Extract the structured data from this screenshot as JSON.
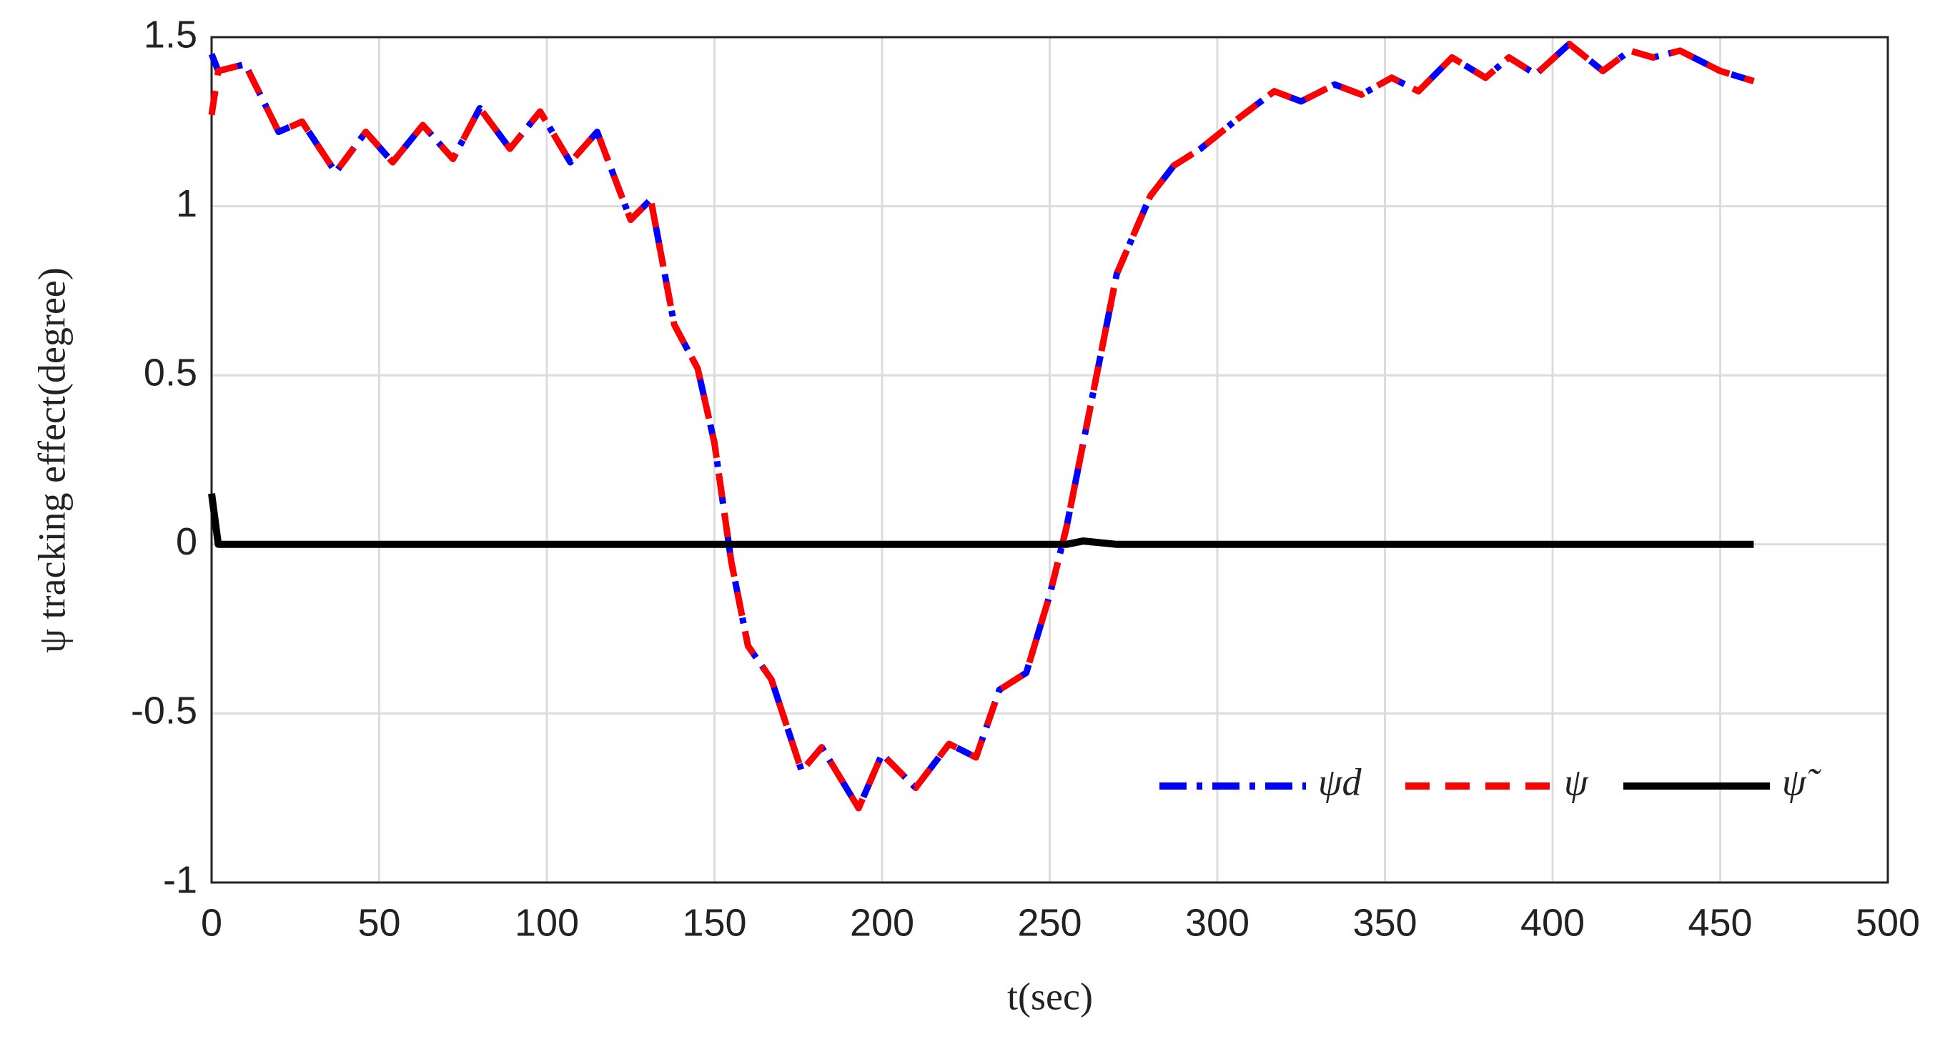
{
  "chart_data": {
    "type": "line",
    "xlabel": "t(sec)",
    "ylabel": "ψ tracking effect(degree)",
    "x": [
      0,
      2,
      10,
      20,
      27,
      37,
      46,
      54,
      63,
      72,
      80,
      89,
      98,
      107,
      115,
      125,
      131,
      138,
      145,
      150,
      155,
      160,
      167,
      176,
      182,
      193,
      200,
      210,
      220,
      228,
      235,
      243,
      250,
      255,
      260,
      265,
      270,
      280,
      287,
      295,
      305,
      317,
      325,
      335,
      343,
      352,
      360,
      370,
      380,
      387,
      395,
      405,
      415,
      423,
      430,
      438,
      450,
      460
    ],
    "series": [
      {
        "name": "ψd",
        "color": "#0000ff",
        "linestyle": "dashdot",
        "values": [
          1.45,
          1.4,
          1.42,
          1.22,
          1.25,
          1.1,
          1.22,
          1.13,
          1.24,
          1.14,
          1.29,
          1.17,
          1.28,
          1.13,
          1.22,
          0.96,
          1.02,
          0.65,
          0.52,
          0.3,
          -0.05,
          -0.3,
          -0.4,
          -0.67,
          -0.6,
          -0.78,
          -0.62,
          -0.72,
          -0.59,
          -0.63,
          -0.43,
          -0.38,
          -0.15,
          0.05,
          0.3,
          0.55,
          0.8,
          1.03,
          1.12,
          1.17,
          1.25,
          1.34,
          1.31,
          1.36,
          1.33,
          1.38,
          1.34,
          1.44,
          1.38,
          1.44,
          1.39,
          1.48,
          1.4,
          1.46,
          1.44,
          1.46,
          1.4,
          1.37
        ]
      },
      {
        "name": "ψ",
        "color": "#ff0000",
        "linestyle": "dashed",
        "values": [
          1.27,
          1.4,
          1.42,
          1.22,
          1.25,
          1.1,
          1.22,
          1.13,
          1.24,
          1.14,
          1.29,
          1.17,
          1.28,
          1.13,
          1.22,
          0.96,
          1.02,
          0.65,
          0.52,
          0.3,
          -0.05,
          -0.3,
          -0.4,
          -0.67,
          -0.6,
          -0.78,
          -0.62,
          -0.72,
          -0.59,
          -0.63,
          -0.43,
          -0.38,
          -0.15,
          0.05,
          0.3,
          0.55,
          0.8,
          1.03,
          1.12,
          1.17,
          1.25,
          1.34,
          1.31,
          1.36,
          1.33,
          1.38,
          1.34,
          1.44,
          1.38,
          1.44,
          1.39,
          1.48,
          1.4,
          1.46,
          1.44,
          1.46,
          1.4,
          1.37
        ]
      },
      {
        "name": "ψ̃",
        "color": "#000000",
        "linestyle": "solid",
        "values": [
          0.15,
          0,
          0,
          0,
          0,
          0,
          0,
          0,
          0,
          0,
          0,
          0,
          0,
          0,
          0,
          0,
          0,
          0,
          0,
          0,
          0,
          0,
          0,
          0,
          0,
          0,
          0,
          0,
          0,
          0,
          0,
          0,
          0,
          0,
          0.01,
          0.005,
          0,
          0,
          0,
          0,
          0,
          0,
          0,
          0,
          0,
          0,
          0,
          0,
          0,
          0,
          0,
          0,
          0,
          0,
          0,
          0,
          0,
          0
        ]
      }
    ],
    "xlim": [
      0,
      500
    ],
    "xticks": [
      0,
      50,
      100,
      150,
      200,
      250,
      300,
      350,
      400,
      450,
      500
    ],
    "ylim": [
      -1,
      1.5
    ],
    "yticks": [
      -1,
      -0.5,
      0,
      0.5,
      1,
      1.5
    ],
    "grid": true,
    "legend": "lower right"
  }
}
